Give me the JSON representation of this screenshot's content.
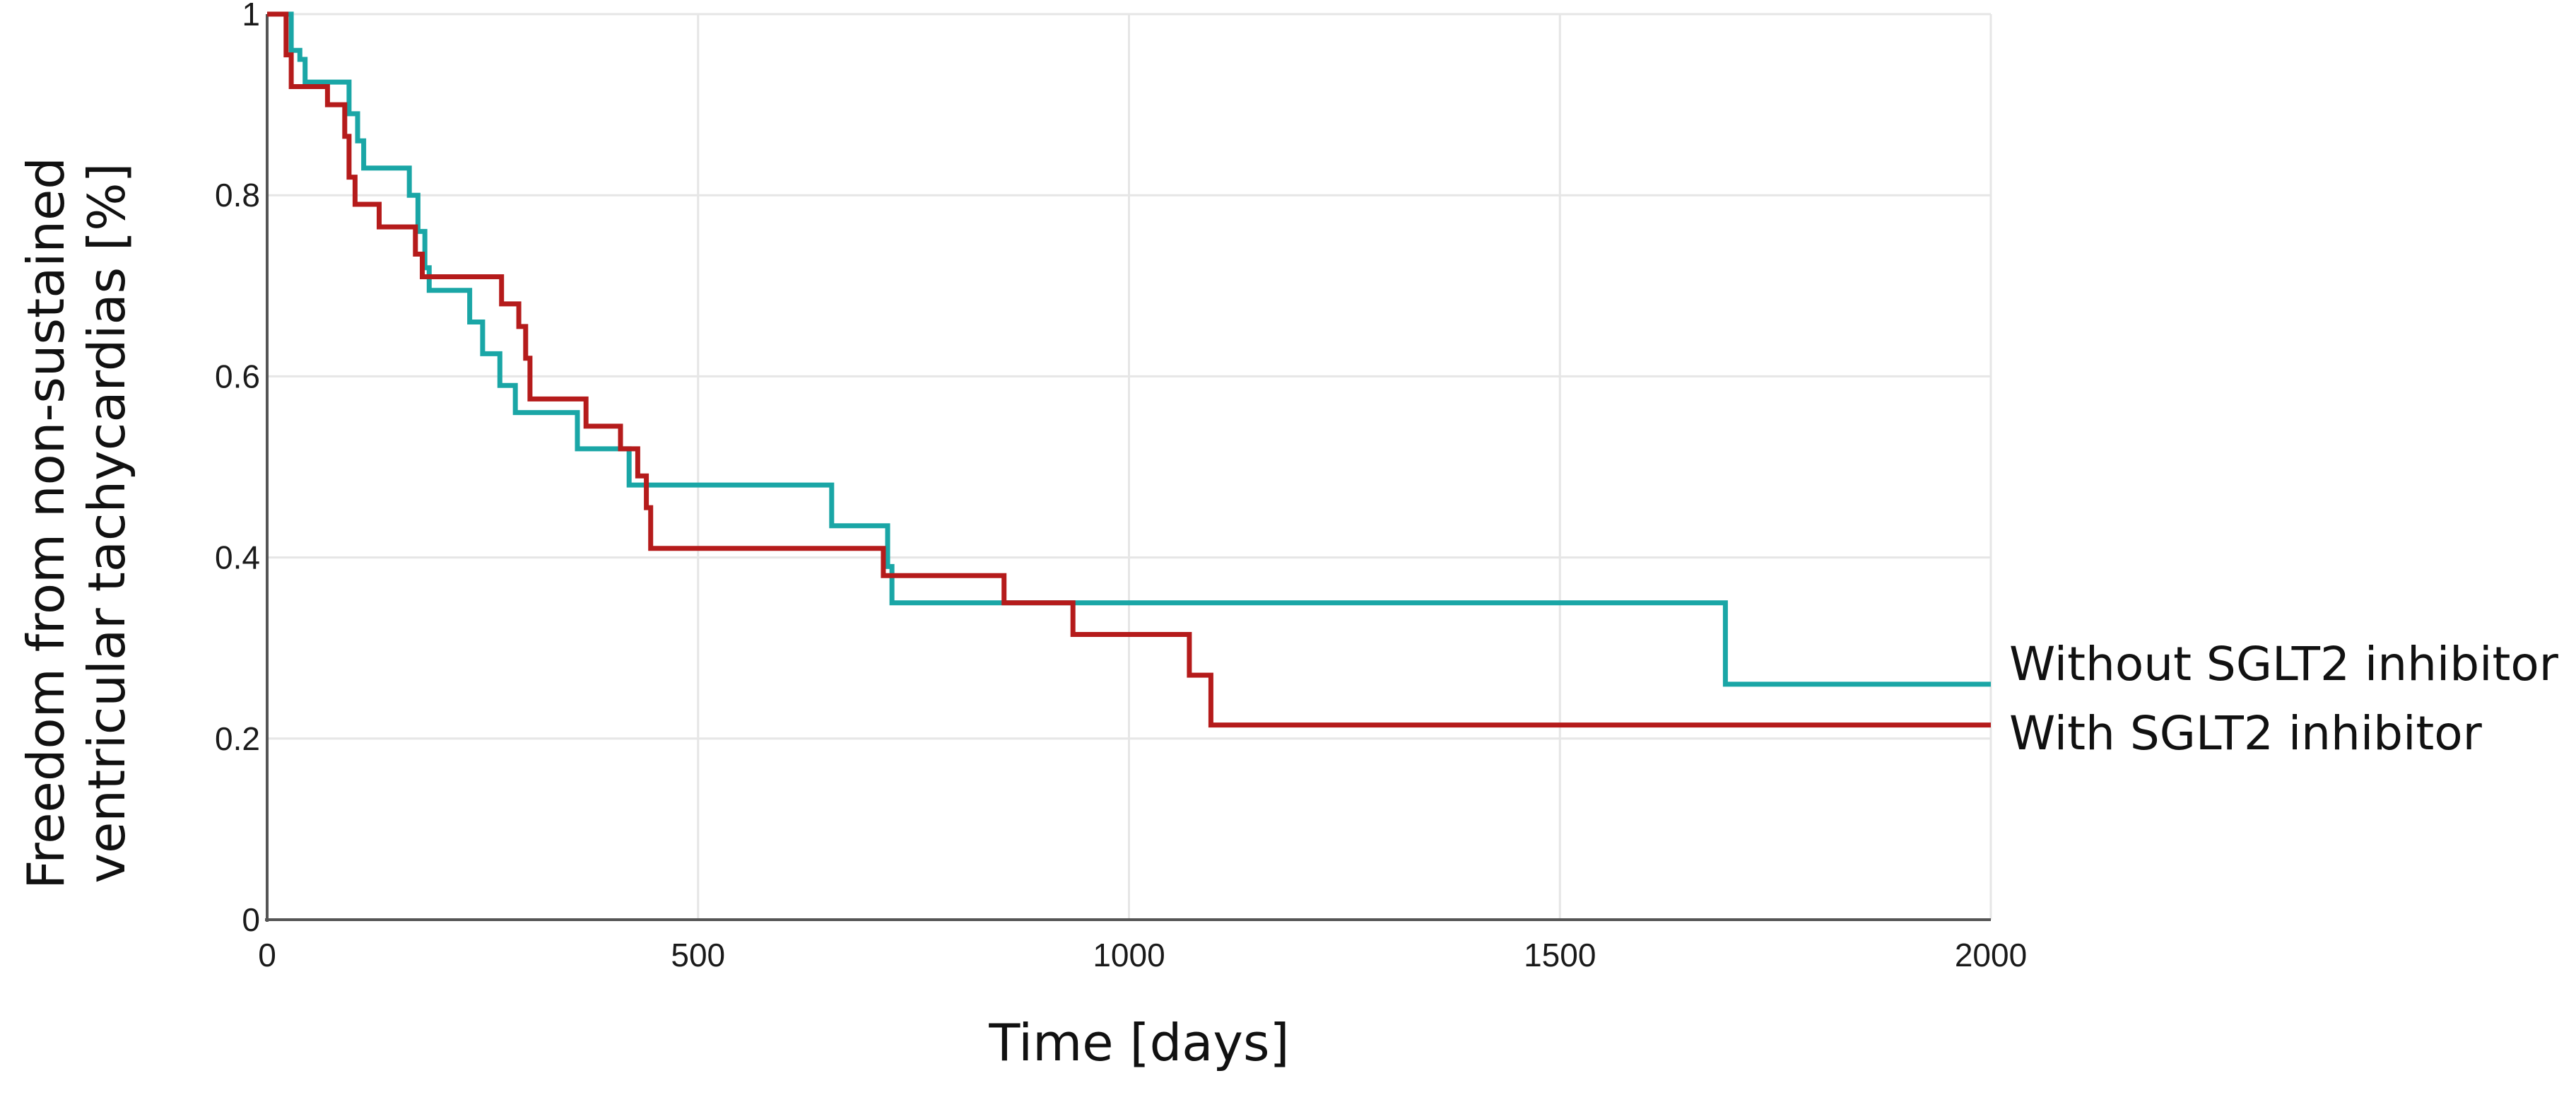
{
  "chart_data": {
    "type": "line",
    "step": true,
    "xlabel": "Time [days]",
    "ylabel_lines": [
      "Freedom from non-sustained",
      "ventricular tachycardias [%]"
    ],
    "xlim": [
      0,
      2000
    ],
    "ylim": [
      0,
      1
    ],
    "x_ticks": [
      0,
      500,
      1000,
      1500,
      2000
    ],
    "x_tick_labels": [
      "0",
      "500",
      "1000",
      "1500",
      "2000"
    ],
    "y_ticks": [
      0,
      0.2,
      0.4,
      0.6,
      0.8,
      1
    ],
    "y_tick_labels": [
      "0",
      "0.2",
      "0.4",
      "0.6",
      "0.8",
      "1"
    ],
    "grid": true,
    "legend_placement": "right",
    "series": [
      {
        "name": "Without SGLT2 inhibitor",
        "color": "#1aa6a6",
        "points": [
          [
            0,
            1
          ],
          [
            28,
            0.96
          ],
          [
            38,
            0.95
          ],
          [
            44,
            0.925
          ],
          [
            88,
            0.925
          ],
          [
            95,
            0.89
          ],
          [
            105,
            0.86
          ],
          [
            112,
            0.83
          ],
          [
            160,
            0.83
          ],
          [
            165,
            0.8
          ],
          [
            175,
            0.76
          ],
          [
            183,
            0.72
          ],
          [
            188,
            0.695
          ],
          [
            225,
            0.695
          ],
          [
            235,
            0.66
          ],
          [
            250,
            0.625
          ],
          [
            270,
            0.59
          ],
          [
            288,
            0.56
          ],
          [
            355,
            0.56
          ],
          [
            360,
            0.52
          ],
          [
            415,
            0.52
          ],
          [
            420,
            0.48
          ],
          [
            650,
            0.48
          ],
          [
            655,
            0.435
          ],
          [
            715,
            0.435
          ],
          [
            720,
            0.39
          ],
          [
            725,
            0.35
          ],
          [
            1690,
            0.35
          ],
          [
            1692,
            0.26
          ],
          [
            2000,
            0.26
          ]
        ]
      },
      {
        "name": "With SGLT2 inhibitor",
        "color": "#b51b1b",
        "points": [
          [
            0,
            1
          ],
          [
            22,
            0.955
          ],
          [
            28,
            0.92
          ],
          [
            65,
            0.92
          ],
          [
            70,
            0.9
          ],
          [
            85,
            0.9
          ],
          [
            90,
            0.865
          ],
          [
            95,
            0.82
          ],
          [
            102,
            0.79
          ],
          [
            125,
            0.79
          ],
          [
            130,
            0.765
          ],
          [
            165,
            0.765
          ],
          [
            172,
            0.735
          ],
          [
            180,
            0.71
          ],
          [
            268,
            0.71
          ],
          [
            272,
            0.68
          ],
          [
            288,
            0.68
          ],
          [
            292,
            0.655
          ],
          [
            300,
            0.62
          ],
          [
            305,
            0.575
          ],
          [
            365,
            0.575
          ],
          [
            370,
            0.545
          ],
          [
            405,
            0.545
          ],
          [
            410,
            0.52
          ],
          [
            425,
            0.52
          ],
          [
            430,
            0.49
          ],
          [
            440,
            0.455
          ],
          [
            445,
            0.41
          ],
          [
            710,
            0.41
          ],
          [
            715,
            0.38
          ],
          [
            850,
            0.38
          ],
          [
            855,
            0.35
          ],
          [
            930,
            0.35
          ],
          [
            935,
            0.315
          ],
          [
            1065,
            0.315
          ],
          [
            1070,
            0.27
          ],
          [
            1090,
            0.27
          ],
          [
            1095,
            0.215
          ],
          [
            2000,
            0.215
          ]
        ]
      }
    ]
  },
  "colors": {
    "grid": "#e6e6e6",
    "axis": "#555555"
  }
}
